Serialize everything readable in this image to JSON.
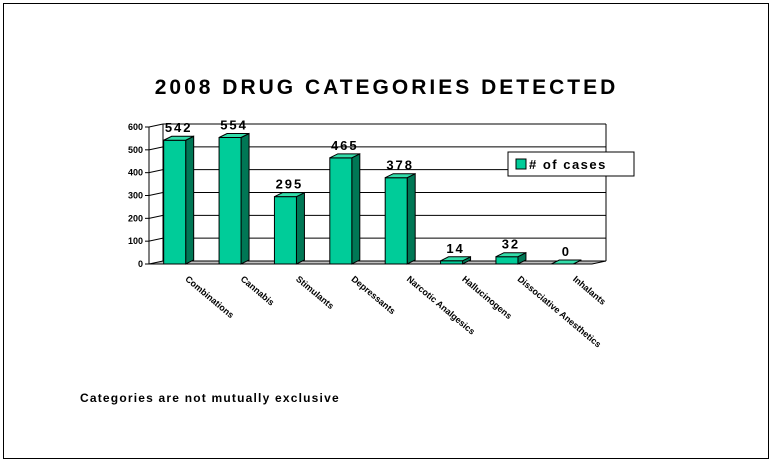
{
  "chart_data": {
    "type": "bar",
    "title": "2008 DRUG CATEGORIES DETECTED",
    "categories": [
      "Combinations",
      "Cannabis",
      "Stimulants",
      "Depressants",
      "Narcotic Analgesics",
      "Hallucinogens",
      "Dissociative Anesthetics",
      "Inhalants"
    ],
    "series": [
      {
        "name": "# of cases",
        "values": [
          542,
          554,
          295,
          465,
          378,
          14,
          32,
          0
        ]
      }
    ],
    "data_labels": [
      "542",
      "554",
      "295",
      "465",
      "378",
      "14",
      "32",
      "0"
    ],
    "ylim": [
      0,
      600
    ],
    "yticks": [
      0,
      100,
      200,
      300,
      400,
      500,
      600
    ],
    "xlabel": "",
    "ylabel": "",
    "grid": true,
    "legend_position": "right",
    "bar_color": "#00CC99",
    "bar_side_color": "#007755",
    "bar_top_color": "#33DDAA"
  },
  "footnote": "Categories are not mutually exclusive"
}
